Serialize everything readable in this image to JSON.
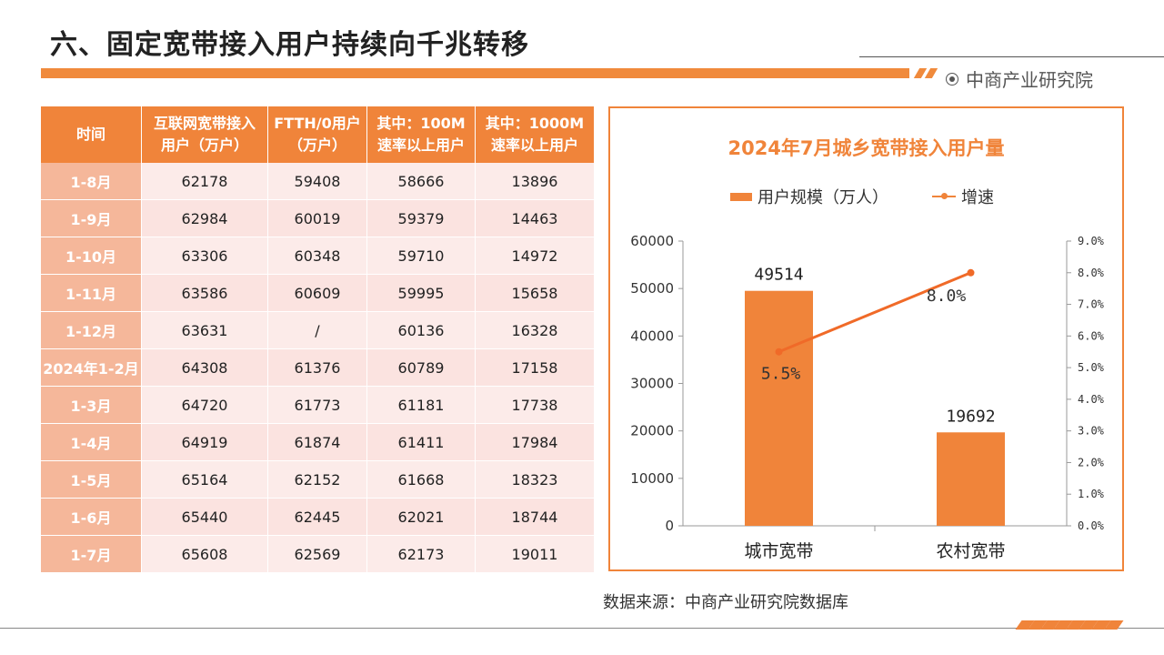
{
  "header": {
    "title": "六、固定宽带接入用户持续向千兆转移",
    "brand": "中商产业研究院"
  },
  "table": {
    "headers": [
      [
        "时间"
      ],
      [
        "互联网宽带接入",
        "用户（万户）"
      ],
      [
        "FTTH/0用户",
        "（万户）"
      ],
      [
        "其中：100M",
        "速率以上用户"
      ],
      [
        "其中：1000M",
        "速率以上用户"
      ]
    ],
    "rows": [
      [
        "1-8月",
        "62178",
        "59408",
        "58666",
        "13896"
      ],
      [
        "1-9月",
        "62984",
        "60019",
        "59379",
        "14463"
      ],
      [
        "1-10月",
        "63306",
        "60348",
        "59710",
        "14972"
      ],
      [
        "1-11月",
        "63586",
        "60609",
        "59995",
        "15658"
      ],
      [
        "1-12月",
        "63631",
        "/",
        "60136",
        "16328"
      ],
      [
        "2024年1-2月",
        "64308",
        "61376",
        "60789",
        "17158"
      ],
      [
        "1-3月",
        "64720",
        "61773",
        "61181",
        "17738"
      ],
      [
        "1-4月",
        "64919",
        "61874",
        "61411",
        "17984"
      ],
      [
        "1-5月",
        "65164",
        "62152",
        "61668",
        "18323"
      ],
      [
        "1-6月",
        "65440",
        "62445",
        "62021",
        "18744"
      ],
      [
        "1-7月",
        "65608",
        "62569",
        "62173",
        "19011"
      ]
    ]
  },
  "chart_data": {
    "type": "bar",
    "title": "2024年7月城乡宽带接入用户量",
    "categories": [
      "城市宽带",
      "农村宽带"
    ],
    "series": [
      {
        "name": "用户规模（万人）",
        "type": "bar",
        "values": [
          49514,
          19692
        ],
        "labels": [
          "49514",
          "19692"
        ]
      },
      {
        "name": "增速",
        "type": "line",
        "values": [
          5.5,
          8.0
        ],
        "labels": [
          "5.5%",
          "8.0%"
        ]
      }
    ],
    "ylim": [
      0,
      60000
    ],
    "yticks": [
      "0",
      "10000",
      "20000",
      "30000",
      "40000",
      "50000",
      "60000"
    ],
    "y2lim": [
      0,
      9
    ],
    "y2ticks": [
      "0.0%",
      "1.0%",
      "2.0%",
      "3.0%",
      "4.0%",
      "5.0%",
      "6.0%",
      "7.0%",
      "8.0%",
      "9.0%"
    ],
    "legend_position": "top",
    "grid": false,
    "colors": {
      "bar": "#f0843a",
      "line": "#f06a28"
    }
  },
  "footer": {
    "source": "数据来源：中商产业研究院数据库"
  }
}
